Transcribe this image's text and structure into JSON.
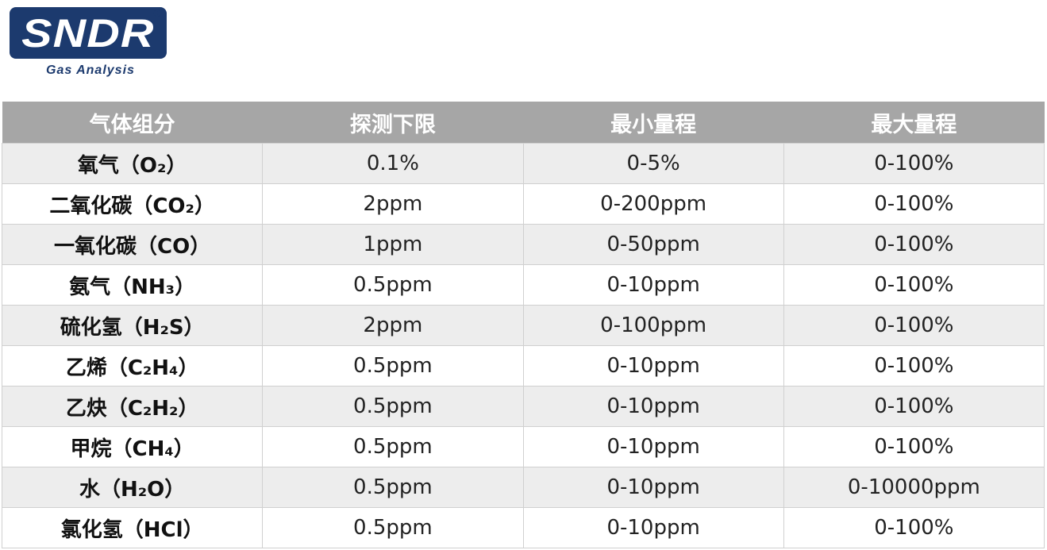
{
  "logo": {
    "brand": "SNDR",
    "tagline": "Gas Analysis",
    "registered": "®",
    "brand_color": "#1c3a6e"
  },
  "table": {
    "headers": [
      "气体组分",
      "探测下限",
      "最小量程",
      "最大量程"
    ],
    "rows": [
      [
        "氧气（O₂）",
        "0.1%",
        "0-5%",
        "0-100%"
      ],
      [
        "二氧化碳（CO₂）",
        "2ppm",
        "0-200ppm",
        "0-100%"
      ],
      [
        "一氧化碳（CO）",
        "1ppm",
        "0-50ppm",
        "0-100%"
      ],
      [
        "氨气（NH₃）",
        "0.5ppm",
        "0-10ppm",
        "0-100%"
      ],
      [
        "硫化氢（H₂S）",
        "2ppm",
        "0-100ppm",
        "0-100%"
      ],
      [
        "乙烯（C₂H₄）",
        "0.5ppm",
        "0-10ppm",
        "0-100%"
      ],
      [
        "乙炔（C₂H₂）",
        "0.5ppm",
        "0-10ppm",
        "0-100%"
      ],
      [
        "甲烷（CH₄）",
        "0.5ppm",
        "0-10ppm",
        "0-100%"
      ],
      [
        "水（H₂O）",
        "0.5ppm",
        "0-10ppm",
        "0-10000ppm"
      ],
      [
        "氯化氢（HCl）",
        "0.5ppm",
        "0-10ppm",
        "0-100%"
      ]
    ]
  }
}
